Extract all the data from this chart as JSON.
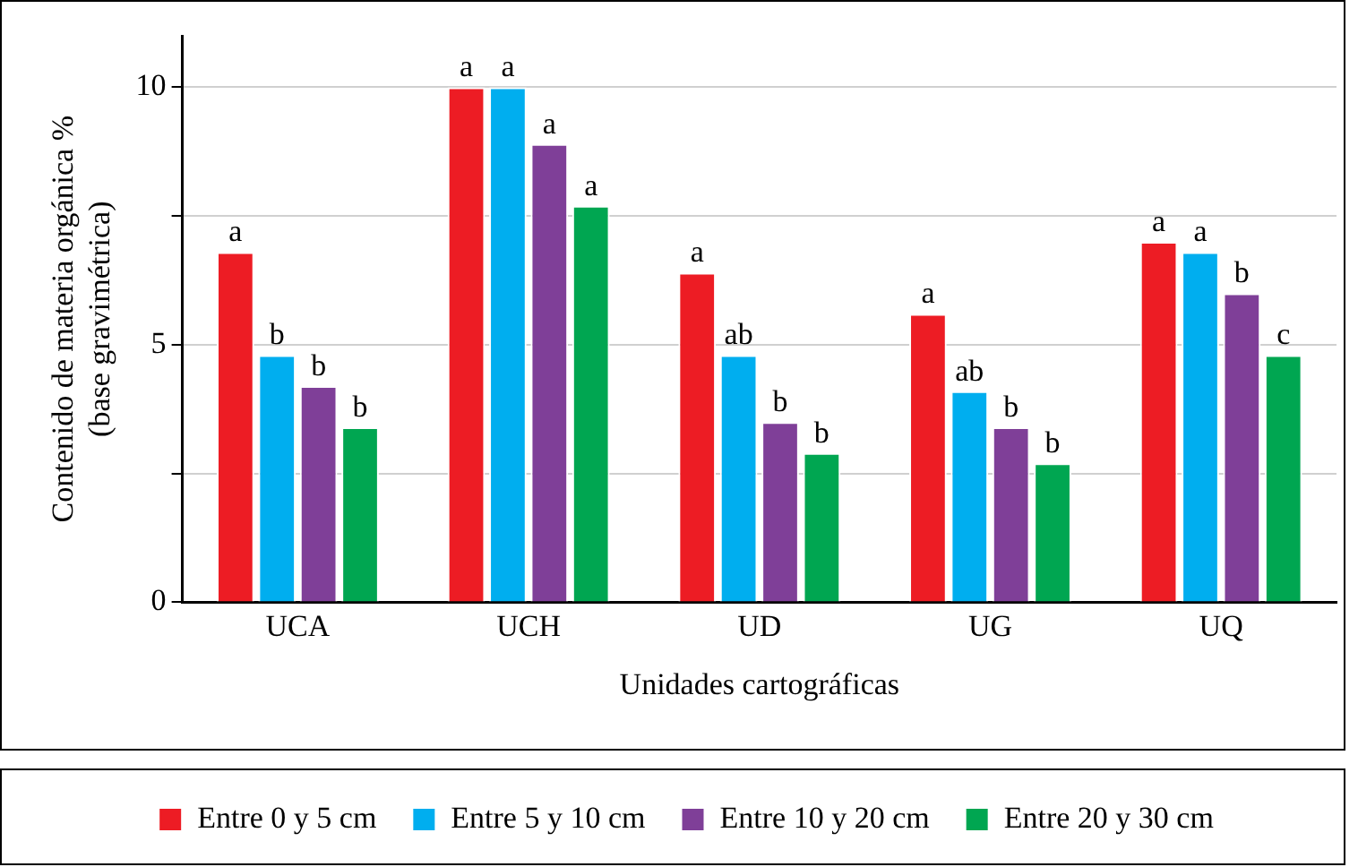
{
  "chart_data": {
    "type": "bar",
    "xlabel": "Unidades cartográficas",
    "ylabel": "Contenido de materia orgánica %\n(base gravimétrica)",
    "categories": [
      "UCA",
      "UCH",
      "UD",
      "UG",
      "UQ"
    ],
    "series": [
      {
        "name": "Entre 0 y 5 cm",
        "color": "#ed1c24",
        "values": [
          6.8,
          10.0,
          6.4,
          5.6,
          7.0
        ],
        "value_labels": [
          "a",
          "a",
          "a",
          "a",
          "a"
        ]
      },
      {
        "name": "Entre 5 y 10 cm",
        "color": "#00aeef",
        "values": [
          4.8,
          10.0,
          4.8,
          4.1,
          6.8
        ],
        "value_labels": [
          "b",
          "a",
          "ab",
          "ab",
          "a"
        ]
      },
      {
        "name": "Entre 10 y 20 cm",
        "color": "#7f3f98",
        "values": [
          4.2,
          8.9,
          3.5,
          3.4,
          6.0
        ],
        "value_labels": [
          "b",
          "a",
          "b",
          "b",
          "b"
        ]
      },
      {
        "name": "Entre 20 y 30 cm",
        "color": "#00a651",
        "values": [
          3.4,
          7.7,
          2.9,
          2.7,
          4.8
        ],
        "value_labels": [
          "b",
          "a",
          "b",
          "b",
          "c"
        ]
      }
    ],
    "ylim": [
      0,
      11
    ],
    "yticks": [
      0,
      {
        "value": 2.5,
        "label": null
      },
      5,
      {
        "value": 7.5,
        "label": null
      },
      10
    ],
    "grid": "y",
    "legend": "bottom"
  }
}
